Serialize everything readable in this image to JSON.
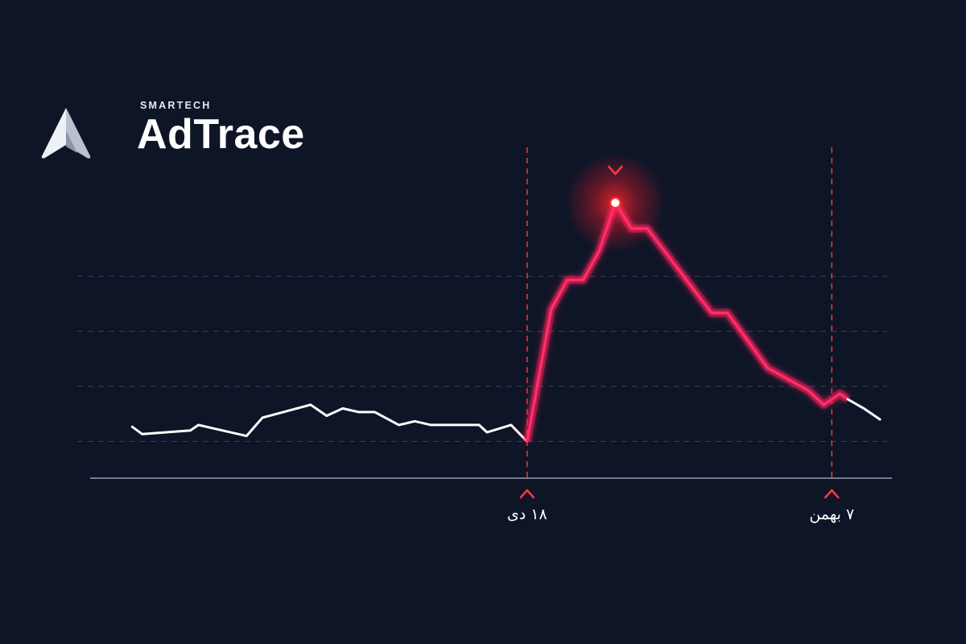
{
  "brand": {
    "small": "SMARTECH",
    "name": "AdTrace",
    "logo_icon": "adtrace-a-mark-icon"
  },
  "colors": {
    "background": "#0e1527",
    "line_normal": "#ffffff",
    "line_highlight": "#ff2d6b",
    "marker": "#ff3b3b",
    "axis": "#6f7c98",
    "grid": "#3a4258"
  },
  "chart_data": {
    "type": "line",
    "title": "",
    "xlabel": "",
    "ylabel": "",
    "x_range": [
      0,
      100
    ],
    "ylim": [
      0,
      10
    ],
    "grid": {
      "horizontal": true,
      "style": "dashed",
      "values": [
        1,
        2.5,
        4,
        5.5
      ]
    },
    "series": [
      {
        "values": [
          [
            5.25,
            1.4
          ],
          [
            6.5,
            1.2
          ],
          [
            12.5,
            1.3
          ],
          [
            13.5,
            1.45
          ],
          [
            19.5,
            1.15
          ],
          [
            21.5,
            1.65
          ],
          [
            27.5,
            2.0
          ],
          [
            29.5,
            1.7
          ],
          [
            31.5,
            1.9
          ],
          [
            33.5,
            1.8
          ],
          [
            35.5,
            1.8
          ],
          [
            38.5,
            1.45
          ],
          [
            40.5,
            1.55
          ],
          [
            42.5,
            1.45
          ],
          [
            48.5,
            1.45
          ],
          [
            49.5,
            1.25
          ],
          [
            52.5,
            1.45
          ],
          [
            54.5,
            1.0
          ]
        ]
      },
      {
        "values": [
          [
            54.5,
            1.0
          ],
          [
            57.5,
            4.6
          ],
          [
            59.5,
            5.4
          ],
          [
            61.5,
            5.4
          ],
          [
            63.5,
            6.2
          ],
          [
            65.5,
            7.5
          ],
          [
            67.5,
            6.8
          ],
          [
            69.5,
            6.8
          ],
          [
            77.5,
            4.5
          ],
          [
            79.5,
            4.5
          ],
          [
            84.5,
            3.0
          ],
          [
            89.5,
            2.4
          ],
          [
            91.5,
            2.0
          ],
          [
            93.5,
            2.3
          ],
          [
            94.5,
            2.15
          ]
        ]
      },
      {
        "values": [
          [
            94.5,
            2.15
          ],
          [
            96.5,
            1.9
          ],
          [
            98.5,
            1.6
          ]
        ]
      }
    ],
    "peak": [
      65.5,
      7.5
    ],
    "markers": [
      {
        "x": 54.5,
        "label": "۱۸ دی"
      },
      {
        "x": 92.5,
        "label": "۷ بهمن"
      }
    ]
  }
}
